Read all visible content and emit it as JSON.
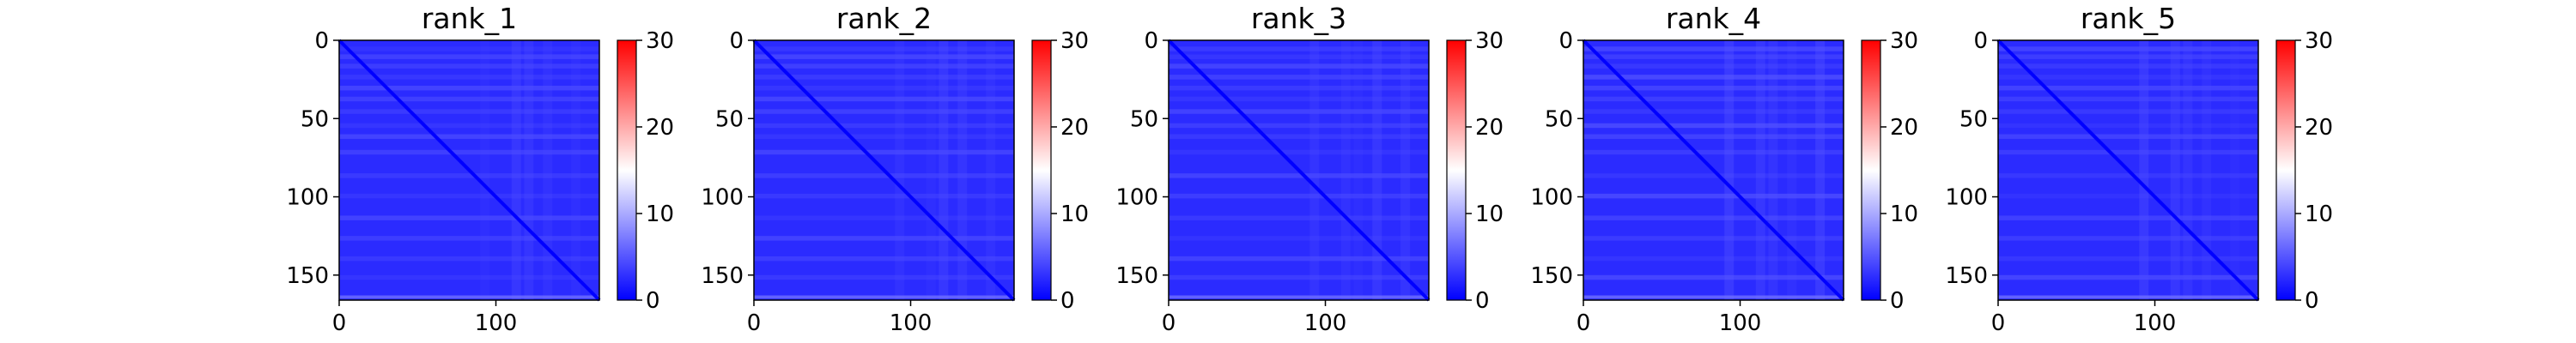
{
  "chart_data": [
    {
      "type": "heatmap",
      "title": "rank_1",
      "x_ticks": [
        0,
        100
      ],
      "y_ticks": [
        0,
        50,
        100,
        150
      ],
      "xlim": [
        0,
        166
      ],
      "ylim": [
        166,
        0
      ],
      "colorbar": {
        "range": [
          0,
          30
        ],
        "ticks": [
          0,
          10,
          20,
          30
        ]
      },
      "colormap": [
        "#0000ff",
        "#ffffff",
        "#ff0000"
      ],
      "diagonal_value": 0,
      "background_value": 2.5,
      "bright_rows_value": 4.5,
      "bottom_edge_value": 6.5
    },
    {
      "type": "heatmap",
      "title": "rank_2",
      "x_ticks": [
        0,
        100
      ],
      "y_ticks": [
        0,
        50,
        100,
        150
      ],
      "xlim": [
        0,
        166
      ],
      "ylim": [
        166,
        0
      ],
      "colorbar": {
        "range": [
          0,
          30
        ],
        "ticks": [
          0,
          10,
          20,
          30
        ]
      },
      "colormap": [
        "#0000ff",
        "#ffffff",
        "#ff0000"
      ],
      "diagonal_value": 0,
      "background_value": 2.5,
      "bright_rows_value": 4.5,
      "bottom_edge_value": 6.5
    },
    {
      "type": "heatmap",
      "title": "rank_3",
      "x_ticks": [
        0,
        100
      ],
      "y_ticks": [
        0,
        50,
        100,
        150
      ],
      "xlim": [
        0,
        166
      ],
      "ylim": [
        166,
        0
      ],
      "colorbar": {
        "range": [
          0,
          30
        ],
        "ticks": [
          0,
          10,
          20,
          30
        ]
      },
      "colormap": [
        "#0000ff",
        "#ffffff",
        "#ff0000"
      ],
      "diagonal_value": 0,
      "background_value": 2.5,
      "bright_rows_value": 4.5,
      "bottom_edge_value": 6.5
    },
    {
      "type": "heatmap",
      "title": "rank_4",
      "x_ticks": [
        0,
        100
      ],
      "y_ticks": [
        0,
        50,
        100,
        150
      ],
      "xlim": [
        0,
        166
      ],
      "ylim": [
        166,
        0
      ],
      "colorbar": {
        "range": [
          0,
          30
        ],
        "ticks": [
          0,
          10,
          20,
          30
        ]
      },
      "colormap": [
        "#0000ff",
        "#ffffff",
        "#ff0000"
      ],
      "diagonal_value": 0,
      "background_value": 2.5,
      "bright_rows_value": 5,
      "bottom_edge_value": 6.5
    },
    {
      "type": "heatmap",
      "title": "rank_5",
      "x_ticks": [
        0,
        100
      ],
      "y_ticks": [
        0,
        50,
        100,
        150
      ],
      "xlim": [
        0,
        166
      ],
      "ylim": [
        166,
        0
      ],
      "colorbar": {
        "range": [
          0,
          30
        ],
        "ticks": [
          0,
          10,
          20,
          30
        ]
      },
      "colormap": [
        "#0000ff",
        "#ffffff",
        "#ff0000"
      ],
      "diagonal_value": 0,
      "background_value": 2.5,
      "bright_rows_value": 4.5,
      "bottom_edge_value": 6.5
    }
  ]
}
